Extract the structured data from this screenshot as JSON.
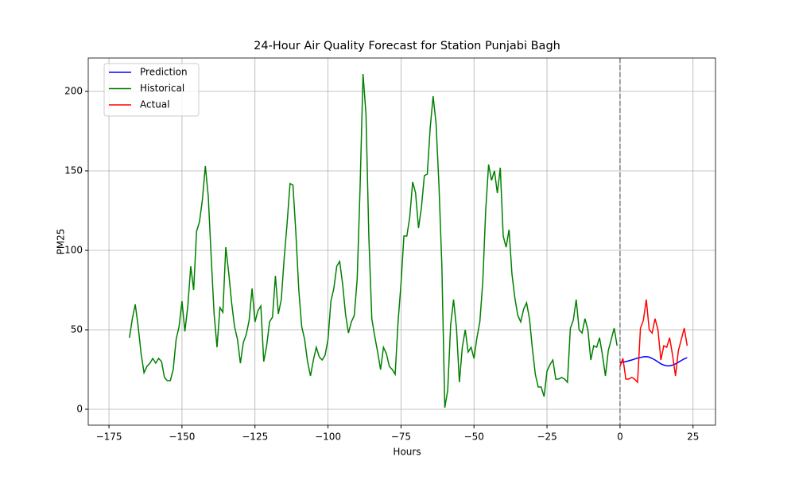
{
  "chart_data": {
    "type": "line",
    "title": "24-Hour Air Quality Forecast for Station Punjabi Bagh",
    "x_label": "Hours",
    "y_label": "PM25",
    "xlim": [
      -182.1,
      32.7
    ],
    "ylim": [
      -10,
      221
    ],
    "xticks": [
      {
        "value": -175,
        "label": "−175"
      },
      {
        "value": -150,
        "label": "−150"
      },
      {
        "value": -125,
        "label": "−125"
      },
      {
        "value": -100,
        "label": "−100"
      },
      {
        "value": -75,
        "label": "−75"
      },
      {
        "value": -50,
        "label": "−50"
      },
      {
        "value": -25,
        "label": "−25"
      },
      0,
      25
    ],
    "yticks": [
      0,
      50,
      100,
      150,
      200
    ],
    "grid": true,
    "legend": "upper left",
    "vlines": [
      {
        "x": 0,
        "color": "#808080"
      }
    ],
    "series": [
      {
        "name": "Prediction",
        "color": "#0000ff",
        "x": [
          0,
          1,
          2,
          3,
          4,
          5,
          6,
          7,
          8,
          9,
          10,
          11,
          12,
          13,
          14,
          15,
          16,
          17,
          18,
          19,
          20,
          21,
          22,
          23
        ],
        "values": [
          29.5,
          29.6,
          30,
          30.5,
          31,
          31.6,
          32.2,
          32.6,
          33,
          33.1,
          32.8,
          32,
          31,
          29.8,
          28.6,
          27.8,
          27.3,
          27.3,
          27.8,
          28.6,
          29.6,
          30.7,
          31.7,
          32.5
        ]
      },
      {
        "name": "Historical",
        "color": "#008000",
        "x": [
          -168,
          -167,
          -166,
          -165,
          -164,
          -163,
          -162,
          -161,
          -160,
          -159,
          -158,
          -157,
          -156,
          -155,
          -154,
          -153,
          -152,
          -151,
          -150,
          -149,
          -148,
          -147,
          -146,
          -145,
          -144,
          -143,
          -142,
          -141,
          -140,
          -139,
          -138,
          -137,
          -136,
          -135,
          -134,
          -133,
          -132,
          -131,
          -130,
          -129,
          -128,
          -127,
          -126,
          -125,
          -124,
          -123,
          -122,
          -121,
          -120,
          -119,
          -118,
          -117,
          -116,
          -115,
          -114,
          -113,
          -112,
          -111,
          -110,
          -109,
          -108,
          -107,
          -106,
          -105,
          -104,
          -103,
          -102,
          -101,
          -100,
          -99,
          -98,
          -97,
          -96,
          -95,
          -94,
          -93,
          -92,
          -91,
          -90,
          -89,
          -88,
          -87,
          -86,
          -85,
          -84,
          -83,
          -82,
          -81,
          -80,
          -79,
          -78,
          -77,
          -76,
          -75,
          -74,
          -73,
          -72,
          -71,
          -70,
          -69,
          -68,
          -67,
          -66,
          -65,
          -64,
          -63,
          -62,
          -61,
          -60,
          -59,
          -58,
          -57,
          -56,
          -55,
          -54,
          -53,
          -52,
          -51,
          -50,
          -49,
          -48,
          -47,
          -46,
          -45,
          -44,
          -43,
          -42,
          -41,
          -40,
          -39,
          -38,
          -37,
          -36,
          -35,
          -34,
          -33,
          -32,
          -31,
          -30,
          -29,
          -28,
          -27,
          -26,
          -25,
          -24,
          -23,
          -22,
          -21,
          -20,
          -19,
          -18,
          -17,
          -16,
          -15,
          -14,
          -13,
          -12,
          -11,
          -10,
          -9,
          -8,
          -7,
          -6,
          -5,
          -4,
          -3,
          -2,
          -1
        ],
        "values": [
          45,
          57,
          66,
          52,
          35,
          23,
          27,
          29,
          32,
          29,
          32,
          30,
          20,
          18,
          18,
          25,
          44,
          52,
          68,
          49,
          65,
          90,
          75,
          112,
          118,
          132,
          153,
          134,
          96,
          60,
          39,
          64,
          61,
          102,
          86,
          67,
          52,
          44,
          29,
          42,
          47,
          56,
          76,
          55,
          62,
          65,
          30,
          40,
          55,
          58,
          84,
          60,
          69,
          95,
          117,
          142,
          141,
          111,
          75,
          52,
          44,
          30,
          21,
          31,
          39,
          33,
          31,
          34,
          44,
          68,
          76,
          90,
          93,
          79,
          60,
          48,
          55,
          59,
          82,
          140,
          211,
          186,
          108,
          57,
          46,
          36,
          25,
          39,
          35,
          27,
          25,
          22,
          55,
          79,
          109,
          109,
          121,
          143,
          136,
          114,
          127,
          147,
          148,
          177,
          197,
          180,
          141,
          90,
          1,
          12,
          53,
          69,
          51,
          17,
          39,
          50,
          36,
          39,
          32,
          45,
          55,
          80,
          125,
          154,
          144,
          150,
          136,
          152,
          109,
          102,
          113,
          85,
          70,
          59,
          55,
          63,
          67,
          57,
          38,
          22,
          14,
          14,
          8,
          24,
          28,
          31,
          19,
          19,
          20,
          19,
          17,
          51,
          56,
          69,
          50,
          48,
          57,
          50,
          31,
          40,
          39,
          45,
          34,
          21,
          37,
          44,
          51,
          40
        ]
      },
      {
        "name": "Actual",
        "color": "#ff0000",
        "x": [
          0,
          1,
          2,
          3,
          4,
          5,
          6,
          7,
          8,
          9,
          10,
          11,
          12,
          13,
          14,
          15,
          16,
          17,
          18,
          19,
          20,
          21,
          22,
          23
        ],
        "values": [
          27,
          32,
          19,
          19,
          20,
          19,
          17,
          51,
          56,
          69,
          50,
          48,
          57,
          50,
          31,
          40,
          39,
          45,
          34,
          21,
          37,
          44,
          51,
          40
        ]
      }
    ]
  }
}
